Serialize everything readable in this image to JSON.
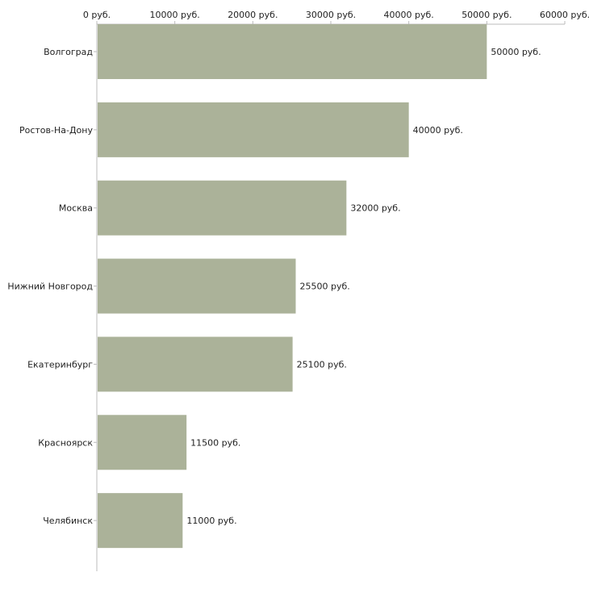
{
  "chart_data": {
    "type": "bar",
    "orientation": "horizontal",
    "title": "",
    "xlabel": "",
    "ylabel": "",
    "xlim": [
      0,
      60000
    ],
    "ticks": [
      0,
      10000,
      20000,
      30000,
      40000,
      50000,
      60000
    ],
    "tick_labels": [
      "0 руб.",
      "10000 руб.",
      "20000 руб.",
      "30000 руб.",
      "40000 руб.",
      "50000 руб.",
      "60000 руб."
    ],
    "axis_position": "top",
    "grid": false,
    "categories": [
      "Волгоград",
      "Ростов-На-Дону",
      "Москва",
      "Нижний Новгород",
      "Екатеринбург",
      "Красноярск",
      "Челябинск"
    ],
    "values": [
      50000,
      40000,
      32000,
      25500,
      25100,
      11500,
      11000
    ],
    "value_labels": [
      "50000 руб.",
      "40000 руб.",
      "32000 руб.",
      "25500 руб.",
      "25100 руб.",
      "11500 руб.",
      "11000 руб."
    ],
    "colors": {
      "bar": "#abb299",
      "axis": "#bbbbbb",
      "text": "#222222"
    }
  }
}
